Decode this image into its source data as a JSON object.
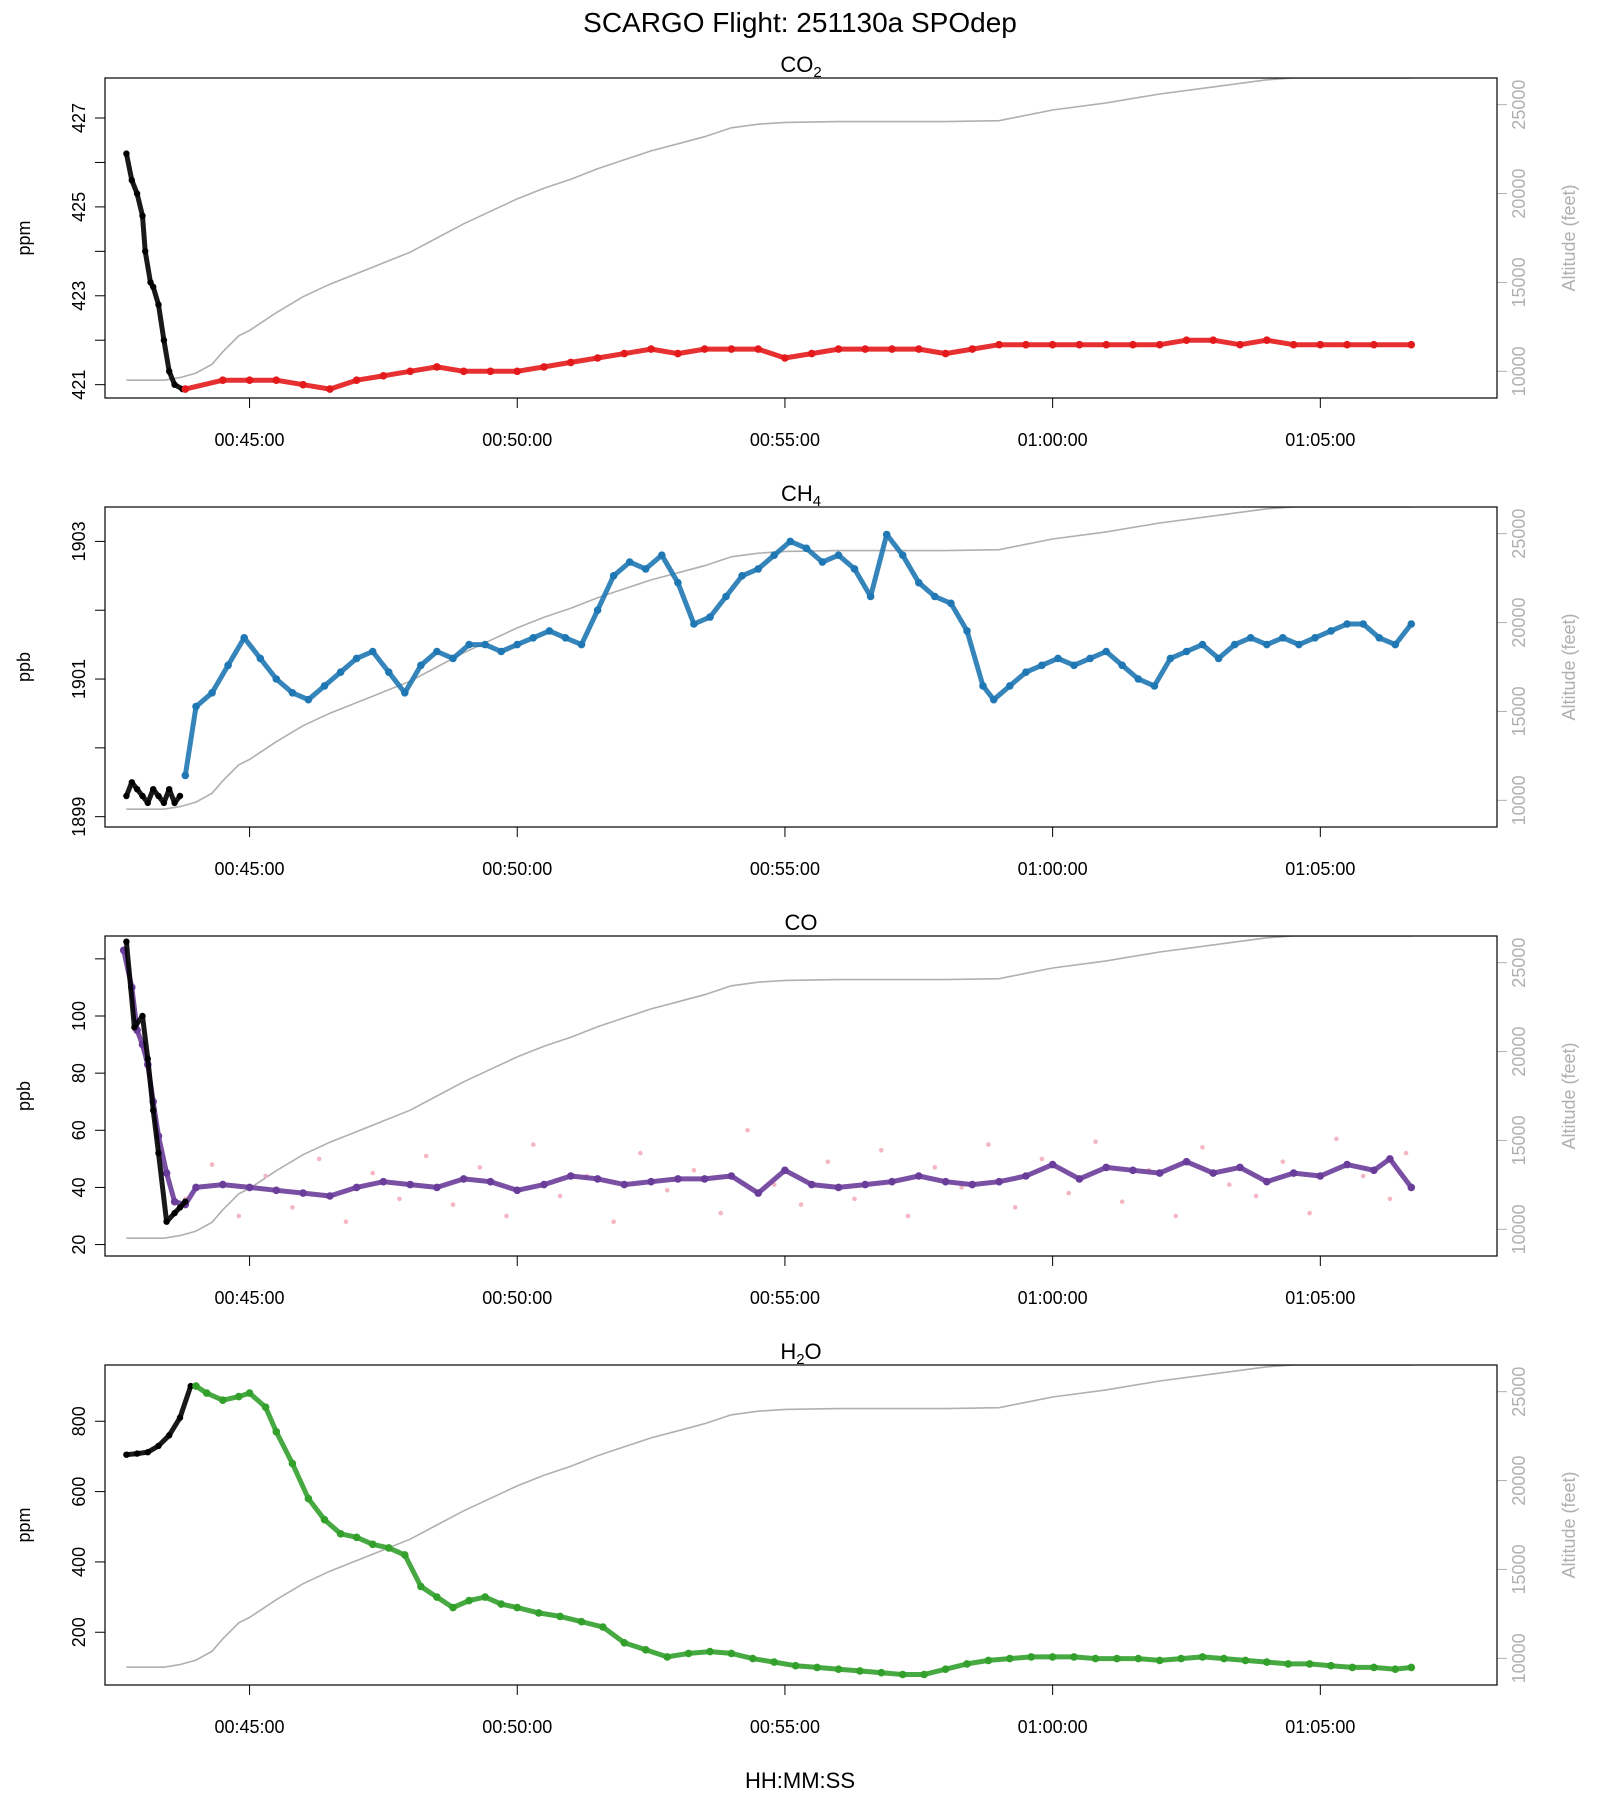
{
  "figure": {
    "title": "SCARGO Flight: 251130a  SPOdep",
    "xlabel": "HH:MM:SS",
    "right_axis_label": "Altitude (feet)",
    "time_ticks": [
      "00:45:00",
      "00:50:00",
      "00:55:00",
      "01:00:00",
      "01:05:00"
    ]
  },
  "colors": {
    "altitude": "#b0b0b0",
    "ground": "#000000",
    "co2": "#e31a1c",
    "ch4": "#1f78b4",
    "co_avg": "#6a3d9a",
    "co_raw": "#f4b6c2",
    "h2o": "#33a02c"
  },
  "chart_data": [
    {
      "type": "scatter",
      "title": "CO",
      "title_sub": "2",
      "title_tail": "",
      "ylabel": "ppm",
      "ylim": [
        420.7,
        427.9
      ],
      "yticks": [
        421,
        423,
        425,
        427
      ],
      "ytick_labels": [
        "421",
        "423",
        "425",
        "427"
      ],
      "minor_yticks": [
        422,
        424,
        426
      ],
      "xlim_min": [
        42.3,
        68.3
      ],
      "altitude_ylim": [
        8500,
        26500
      ],
      "altitude_ticks": [
        10000,
        15000,
        20000,
        25000
      ],
      "altitude_tick_labels": [
        "10000",
        "15000",
        "20000",
        "25000"
      ],
      "series": [
        {
          "name": "ground",
          "color_key": "ground",
          "x": [
            42.7,
            42.8,
            42.9,
            43.0,
            43.05,
            43.15,
            43.2,
            43.3,
            43.4,
            43.5,
            43.6,
            43.75
          ],
          "y": [
            426.2,
            425.6,
            425.3,
            424.8,
            424.0,
            423.3,
            423.2,
            422.8,
            422.0,
            421.3,
            421.0,
            420.9
          ]
        },
        {
          "name": "CO2",
          "color_key": "co2",
          "x": [
            43.8,
            44.5,
            45.0,
            45.5,
            46.0,
            46.5,
            47.0,
            47.5,
            48.0,
            48.5,
            49.0,
            49.5,
            50.0,
            50.5,
            51.0,
            51.5,
            52.0,
            52.5,
            53.0,
            53.5,
            54.0,
            54.5,
            55.0,
            55.5,
            56.0,
            56.5,
            57.0,
            57.5,
            58.0,
            58.5,
            59.0,
            59.5,
            60.0,
            60.5,
            61.0,
            61.5,
            62.0,
            62.5,
            63.0,
            63.5,
            64.0,
            64.5,
            65.0,
            65.5,
            66.0,
            66.7
          ],
          "y": [
            420.9,
            421.1,
            421.1,
            421.1,
            421.0,
            420.9,
            421.1,
            421.2,
            421.3,
            421.4,
            421.3,
            421.3,
            421.3,
            421.4,
            421.5,
            421.6,
            421.7,
            421.8,
            421.7,
            421.8,
            421.8,
            421.8,
            421.6,
            421.7,
            421.8,
            421.8,
            421.8,
            421.8,
            421.7,
            421.8,
            421.9,
            421.9,
            421.9,
            421.9,
            421.9,
            421.9,
            421.9,
            422.0,
            422.0,
            421.9,
            422.0,
            421.9,
            421.9,
            421.9,
            421.9,
            421.9
          ]
        }
      ]
    },
    {
      "type": "scatter",
      "title": "CH",
      "title_sub": "4",
      "title_tail": "",
      "ylabel": "ppb",
      "ylim": [
        1898.85,
        1903.5
      ],
      "yticks": [
        1899,
        1901,
        1903
      ],
      "ytick_labels": [
        "1899",
        "1901",
        "1903"
      ],
      "minor_yticks": [
        1900,
        1902
      ],
      "xlim_min": [
        42.3,
        68.3
      ],
      "altitude_ylim": [
        8500,
        26500
      ],
      "altitude_ticks": [
        10000,
        15000,
        20000,
        25000
      ],
      "altitude_tick_labels": [
        "10000",
        "15000",
        "20000",
        "25000"
      ],
      "series": [
        {
          "name": "ground",
          "color_key": "ground",
          "x": [
            42.7,
            42.8,
            42.9,
            43.0,
            43.1,
            43.2,
            43.3,
            43.4,
            43.5,
            43.6,
            43.7
          ],
          "y": [
            1899.3,
            1899.5,
            1899.4,
            1899.3,
            1899.2,
            1899.4,
            1899.3,
            1899.2,
            1899.4,
            1899.2,
            1899.3
          ]
        },
        {
          "name": "CH4",
          "color_key": "ch4",
          "x": [
            43.8,
            44.0,
            44.3,
            44.6,
            44.9,
            45.2,
            45.5,
            45.8,
            46.1,
            46.4,
            46.7,
            47.0,
            47.3,
            47.6,
            47.9,
            48.2,
            48.5,
            48.8,
            49.1,
            49.4,
            49.7,
            50.0,
            50.3,
            50.6,
            50.9,
            51.2,
            51.5,
            51.8,
            52.1,
            52.4,
            52.7,
            53.0,
            53.3,
            53.6,
            53.9,
            54.2,
            54.5,
            54.8,
            55.1,
            55.4,
            55.7,
            56.0,
            56.3,
            56.6,
            56.9,
            57.2,
            57.5,
            57.8,
            58.1,
            58.4,
            58.7,
            58.9,
            59.2,
            59.5,
            59.8,
            60.1,
            60.4,
            60.7,
            61.0,
            61.3,
            61.6,
            61.9,
            62.2,
            62.5,
            62.8,
            63.1,
            63.4,
            63.7,
            64.0,
            64.3,
            64.6,
            64.9,
            65.2,
            65.5,
            65.8,
            66.1,
            66.4,
            66.7
          ],
          "y": [
            1899.6,
            1900.6,
            1900.8,
            1901.2,
            1901.6,
            1901.3,
            1901.0,
            1900.8,
            1900.7,
            1900.9,
            1901.1,
            1901.3,
            1901.4,
            1901.1,
            1900.8,
            1901.2,
            1901.4,
            1901.3,
            1901.5,
            1901.5,
            1901.4,
            1901.5,
            1901.6,
            1901.7,
            1901.6,
            1901.5,
            1902.0,
            1902.5,
            1902.7,
            1902.6,
            1902.8,
            1902.4,
            1901.8,
            1901.9,
            1902.2,
            1902.5,
            1902.6,
            1902.8,
            1903.0,
            1902.9,
            1902.7,
            1902.8,
            1902.6,
            1902.2,
            1903.1,
            1902.8,
            1902.4,
            1902.2,
            1902.1,
            1901.7,
            1900.9,
            1900.7,
            1900.9,
            1901.1,
            1901.2,
            1901.3,
            1901.2,
            1901.3,
            1901.4,
            1901.2,
            1901.0,
            1900.9,
            1901.3,
            1901.4,
            1901.5,
            1901.3,
            1901.5,
            1901.6,
            1901.5,
            1901.6,
            1901.5,
            1901.6,
            1901.7,
            1901.8,
            1901.8,
            1901.6,
            1901.5,
            1901.8
          ]
        }
      ]
    },
    {
      "type": "scatter",
      "title": "CO",
      "title_sub": "",
      "title_tail": "",
      "ylabel": "ppb",
      "ylim": [
        16,
        128
      ],
      "yticks": [
        20,
        40,
        60,
        80,
        100
      ],
      "ytick_labels": [
        "20",
        "40",
        "60",
        "80",
        "100"
      ],
      "minor_yticks": [
        120
      ],
      "xlim_min": [
        42.3,
        68.3
      ],
      "altitude_ylim": [
        8500,
        26500
      ],
      "altitude_ticks": [
        10000,
        15000,
        20000,
        25000
      ],
      "altitude_tick_labels": [
        "10000",
        "15000",
        "20000",
        "25000"
      ],
      "series": [
        {
          "name": "raw",
          "color_key": "co_raw",
          "x": [
            43.8,
            44.3,
            44.8,
            45.3,
            45.8,
            46.3,
            46.8,
            47.3,
            47.8,
            48.3,
            48.8,
            49.3,
            49.8,
            50.3,
            50.8,
            51.3,
            51.8,
            52.3,
            52.8,
            53.3,
            53.8,
            54.3,
            54.8,
            55.3,
            55.8,
            56.3,
            56.8,
            57.3,
            57.8,
            58.3,
            58.8,
            59.3,
            59.8,
            60.3,
            60.8,
            61.3,
            61.8,
            62.3,
            62.8,
            63.3,
            63.8,
            64.3,
            64.8,
            65.3,
            65.8,
            66.3,
            66.6
          ],
          "y": [
            36,
            48,
            30,
            44,
            33,
            50,
            28,
            45,
            36,
            51,
            34,
            47,
            30,
            55,
            37,
            44,
            28,
            52,
            39,
            46,
            31,
            60,
            41,
            34,
            49,
            36,
            53,
            30,
            47,
            40,
            55,
            33,
            50,
            38,
            56,
            35,
            46,
            30,
            54,
            41,
            37,
            49,
            31,
            57,
            44,
            36,
            52
          ]
        },
        {
          "name": "averaged",
          "color_key": "co_avg",
          "x": [
            42.65,
            42.8,
            42.9,
            43.0,
            43.1,
            43.2,
            43.3,
            43.45,
            43.6,
            43.8,
            44.0,
            44.5,
            45.0,
            45.5,
            46.0,
            46.5,
            47.0,
            47.5,
            48.0,
            48.5,
            49.0,
            49.5,
            50.0,
            50.5,
            51.0,
            51.5,
            52.0,
            52.5,
            53.0,
            53.5,
            54.0,
            54.5,
            55.0,
            55.5,
            56.0,
            56.5,
            57.0,
            57.5,
            58.0,
            58.5,
            59.0,
            59.5,
            60.0,
            60.5,
            61.0,
            61.5,
            62.0,
            62.5,
            63.0,
            63.5,
            64.0,
            64.5,
            65.0,
            65.5,
            66.0,
            66.3,
            66.7
          ],
          "y": [
            123,
            110,
            95,
            90,
            83,
            70,
            58,
            45,
            35,
            34,
            40,
            41,
            40,
            39,
            38,
            37,
            40,
            42,
            41,
            40,
            43,
            42,
            39,
            41,
            44,
            43,
            41,
            42,
            43,
            43,
            44,
            38,
            46,
            41,
            40,
            41,
            42,
            44,
            42,
            41,
            42,
            44,
            48,
            43,
            47,
            46,
            45,
            49,
            45,
            47,
            42,
            45,
            44,
            48,
            46,
            50,
            40
          ]
        },
        {
          "name": "ground",
          "color_key": "ground",
          "x": [
            42.7,
            42.85,
            43.0,
            43.1,
            43.2,
            43.3,
            43.45,
            43.6,
            43.7,
            43.8
          ],
          "y": [
            126,
            96,
            100,
            85,
            67,
            52,
            28,
            31,
            33,
            35
          ]
        }
      ]
    },
    {
      "type": "scatter",
      "title": "H",
      "title_sub": "2",
      "title_tail": "O",
      "ylabel": "ppm",
      "ylim": [
        50,
        960
      ],
      "yticks": [
        200,
        400,
        600,
        800
      ],
      "ytick_labels": [
        "200",
        "400",
        "600",
        "800"
      ],
      "minor_yticks": [],
      "xlim_min": [
        42.3,
        68.3
      ],
      "altitude_ylim": [
        8500,
        26500
      ],
      "altitude_ticks": [
        10000,
        15000,
        20000,
        25000
      ],
      "altitude_tick_labels": [
        "10000",
        "15000",
        "20000",
        "25000"
      ],
      "series": [
        {
          "name": "ground",
          "color_key": "ground",
          "x": [
            42.7,
            42.9,
            43.1,
            43.3,
            43.5,
            43.7,
            43.9
          ],
          "y": [
            705,
            708,
            712,
            730,
            760,
            810,
            900
          ]
        },
        {
          "name": "H2O",
          "color_key": "h2o",
          "x": [
            44.0,
            44.2,
            44.5,
            44.8,
            45.0,
            45.3,
            45.5,
            45.8,
            46.1,
            46.4,
            46.7,
            47.0,
            47.3,
            47.6,
            47.9,
            48.2,
            48.5,
            48.8,
            49.1,
            49.4,
            49.7,
            50.0,
            50.4,
            50.8,
            51.2,
            51.6,
            52.0,
            52.4,
            52.8,
            53.2,
            53.6,
            54.0,
            54.4,
            54.8,
            55.2,
            55.6,
            56.0,
            56.4,
            56.8,
            57.2,
            57.6,
            58.0,
            58.4,
            58.8,
            59.2,
            59.6,
            60.0,
            60.4,
            60.8,
            61.2,
            61.6,
            62.0,
            62.4,
            62.8,
            63.2,
            63.6,
            64.0,
            64.4,
            64.8,
            65.2,
            65.6,
            66.0,
            66.4,
            66.7
          ],
          "y": [
            900,
            880,
            860,
            870,
            880,
            840,
            770,
            680,
            580,
            520,
            480,
            470,
            450,
            440,
            420,
            330,
            300,
            270,
            290,
            300,
            280,
            270,
            255,
            245,
            230,
            215,
            170,
            150,
            130,
            140,
            145,
            140,
            125,
            115,
            105,
            100,
            95,
            90,
            85,
            80,
            80,
            95,
            110,
            120,
            125,
            130,
            130,
            130,
            125,
            125,
            125,
            120,
            125,
            130,
            125,
            120,
            115,
            110,
            110,
            105,
            100,
            100,
            95,
            100
          ]
        }
      ]
    }
  ],
  "altitude_profile": {
    "x": [
      42.7,
      43.4,
      43.7,
      44.0,
      44.3,
      44.5,
      44.8,
      45.0,
      45.5,
      46.0,
      46.5,
      47.0,
      47.5,
      48.0,
      48.5,
      49.0,
      49.5,
      50.0,
      50.5,
      51.0,
      51.5,
      52.0,
      52.5,
      53.0,
      53.5,
      54.0,
      54.5,
      55.0,
      56.0,
      57.0,
      58.0,
      59.0,
      59.5,
      60.0,
      61.0,
      62.0,
      63.0,
      64.0,
      64.5,
      65.0,
      66.0,
      66.7
    ],
    "y": [
      9500,
      9500,
      9650,
      9900,
      10400,
      11100,
      12000,
      12300,
      13300,
      14200,
      14900,
      15500,
      16100,
      16700,
      17500,
      18300,
      19000,
      19700,
      20300,
      20800,
      21400,
      21900,
      22400,
      22800,
      23200,
      23700,
      23900,
      24000,
      24050,
      24050,
      24050,
      24100,
      24400,
      24700,
      25100,
      25600,
      26000,
      26400,
      26500,
      26500,
      26500,
      26500
    ]
  }
}
